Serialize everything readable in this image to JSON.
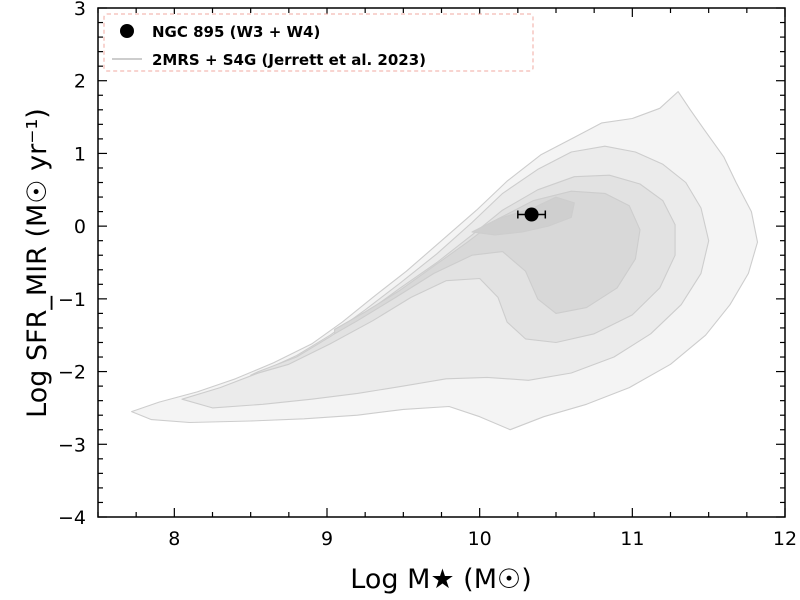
{
  "chart_data": {
    "type": "contour",
    "xlabel": "Log M★ (M☉)",
    "ylabel": "Log SFR_MIR (M☉ yr⁻¹)",
    "xlim": [
      7.5,
      12
    ],
    "ylim": [
      -4,
      3
    ],
    "x_ticks": [
      "8",
      "9",
      "10",
      "11",
      "12"
    ],
    "y_ticks": [
      "−4",
      "−3",
      "−2",
      "−1",
      "0",
      "1",
      "2",
      "3"
    ],
    "grid": false,
    "legend_position": "top-left",
    "legend": {
      "point_label": "NGC 895 (W3 + W4)",
      "contour_label": "2MRS + S4G (Jerrett et al. 2023)"
    },
    "point": {
      "x": 10.34,
      "y": 0.16,
      "xerr": 0.09,
      "yerr": 0.03
    },
    "contour_series": [
      {
        "level": 1,
        "fill": "#f4f4f4",
        "points": [
          [
            7.72,
            -2.55
          ],
          [
            7.9,
            -2.42
          ],
          [
            8.15,
            -2.28
          ],
          [
            8.4,
            -2.1
          ],
          [
            8.65,
            -1.88
          ],
          [
            8.9,
            -1.62
          ],
          [
            9.1,
            -1.32
          ],
          [
            9.3,
            -0.98
          ],
          [
            9.52,
            -0.62
          ],
          [
            9.75,
            -0.2
          ],
          [
            9.98,
            0.22
          ],
          [
            10.18,
            0.62
          ],
          [
            10.4,
            0.98
          ],
          [
            10.62,
            1.22
          ],
          [
            10.8,
            1.42
          ],
          [
            11.0,
            1.48
          ],
          [
            11.18,
            1.62
          ],
          [
            11.3,
            1.85
          ],
          [
            11.38,
            1.6
          ],
          [
            11.48,
            1.3
          ],
          [
            11.6,
            0.95
          ],
          [
            11.68,
            0.6
          ],
          [
            11.78,
            0.2
          ],
          [
            11.82,
            -0.22
          ],
          [
            11.76,
            -0.65
          ],
          [
            11.64,
            -1.08
          ],
          [
            11.48,
            -1.5
          ],
          [
            11.25,
            -1.9
          ],
          [
            10.98,
            -2.22
          ],
          [
            10.7,
            -2.45
          ],
          [
            10.42,
            -2.62
          ],
          [
            10.2,
            -2.8
          ],
          [
            10.0,
            -2.62
          ],
          [
            9.8,
            -2.48
          ],
          [
            9.5,
            -2.52
          ],
          [
            9.2,
            -2.6
          ],
          [
            8.85,
            -2.65
          ],
          [
            8.5,
            -2.68
          ],
          [
            8.1,
            -2.7
          ],
          [
            7.85,
            -2.66
          ]
        ]
      },
      {
        "level": 2,
        "fill": "#ebebeb",
        "points": [
          [
            8.05,
            -2.38
          ],
          [
            8.3,
            -2.22
          ],
          [
            8.55,
            -2.02
          ],
          [
            8.8,
            -1.78
          ],
          [
            9.02,
            -1.5
          ],
          [
            9.25,
            -1.15
          ],
          [
            9.48,
            -0.78
          ],
          [
            9.72,
            -0.38
          ],
          [
            9.95,
            0.05
          ],
          [
            10.15,
            0.45
          ],
          [
            10.38,
            0.78
          ],
          [
            10.6,
            1.02
          ],
          [
            10.82,
            1.1
          ],
          [
            11.02,
            1.02
          ],
          [
            11.2,
            0.85
          ],
          [
            11.35,
            0.6
          ],
          [
            11.45,
            0.25
          ],
          [
            11.5,
            -0.2
          ],
          [
            11.45,
            -0.65
          ],
          [
            11.32,
            -1.08
          ],
          [
            11.12,
            -1.48
          ],
          [
            10.88,
            -1.8
          ],
          [
            10.6,
            -2.02
          ],
          [
            10.32,
            -2.12
          ],
          [
            10.05,
            -2.08
          ],
          [
            9.78,
            -2.1
          ],
          [
            9.5,
            -2.2
          ],
          [
            9.2,
            -2.3
          ],
          [
            8.9,
            -2.38
          ],
          [
            8.58,
            -2.45
          ],
          [
            8.25,
            -2.5
          ]
        ]
      },
      {
        "level": 3,
        "fill": "#e2e2e2",
        "points": [
          [
            8.55,
            -2.0
          ],
          [
            8.8,
            -1.8
          ],
          [
            9.02,
            -1.52
          ],
          [
            9.25,
            -1.2
          ],
          [
            9.48,
            -0.85
          ],
          [
            9.72,
            -0.5
          ],
          [
            9.95,
            -0.12
          ],
          [
            10.15,
            0.22
          ],
          [
            10.38,
            0.5
          ],
          [
            10.62,
            0.68
          ],
          [
            10.85,
            0.7
          ],
          [
            11.05,
            0.58
          ],
          [
            11.2,
            0.35
          ],
          [
            11.28,
            0.02
          ],
          [
            11.28,
            -0.4
          ],
          [
            11.18,
            -0.85
          ],
          [
            11.0,
            -1.22
          ],
          [
            10.75,
            -1.48
          ],
          [
            10.5,
            -1.6
          ],
          [
            10.3,
            -1.55
          ],
          [
            10.18,
            -1.32
          ],
          [
            10.12,
            -0.98
          ],
          [
            10.0,
            -0.72
          ],
          [
            9.78,
            -0.75
          ],
          [
            9.55,
            -0.98
          ],
          [
            9.3,
            -1.3
          ],
          [
            9.02,
            -1.62
          ],
          [
            8.75,
            -1.9
          ],
          [
            8.5,
            -2.05
          ]
        ]
      },
      {
        "level": 4,
        "fill": "#d8d8d8",
        "points": [
          [
            9.05,
            -1.42
          ],
          [
            9.25,
            -1.18
          ],
          [
            9.48,
            -0.88
          ],
          [
            9.7,
            -0.55
          ],
          [
            9.92,
            -0.22
          ],
          [
            10.12,
            0.1
          ],
          [
            10.35,
            0.35
          ],
          [
            10.6,
            0.48
          ],
          [
            10.82,
            0.45
          ],
          [
            10.98,
            0.28
          ],
          [
            11.05,
            -0.05
          ],
          [
            11.02,
            -0.45
          ],
          [
            10.9,
            -0.85
          ],
          [
            10.7,
            -1.12
          ],
          [
            10.5,
            -1.2
          ],
          [
            10.38,
            -1.0
          ],
          [
            10.3,
            -0.62
          ],
          [
            10.15,
            -0.35
          ],
          [
            9.95,
            -0.4
          ],
          [
            9.7,
            -0.65
          ],
          [
            9.45,
            -0.98
          ],
          [
            9.2,
            -1.3
          ],
          [
            9.05,
            -1.48
          ]
        ]
      },
      {
        "level": 5,
        "fill": "#cfcfcf",
        "points": [
          [
            9.95,
            -0.08
          ],
          [
            10.12,
            0.1
          ],
          [
            10.35,
            0.25
          ],
          [
            10.5,
            0.4
          ],
          [
            10.62,
            0.32
          ],
          [
            10.6,
            0.12
          ],
          [
            10.45,
            0.0
          ],
          [
            10.28,
            -0.08
          ],
          [
            10.1,
            -0.12
          ]
        ]
      }
    ]
  }
}
